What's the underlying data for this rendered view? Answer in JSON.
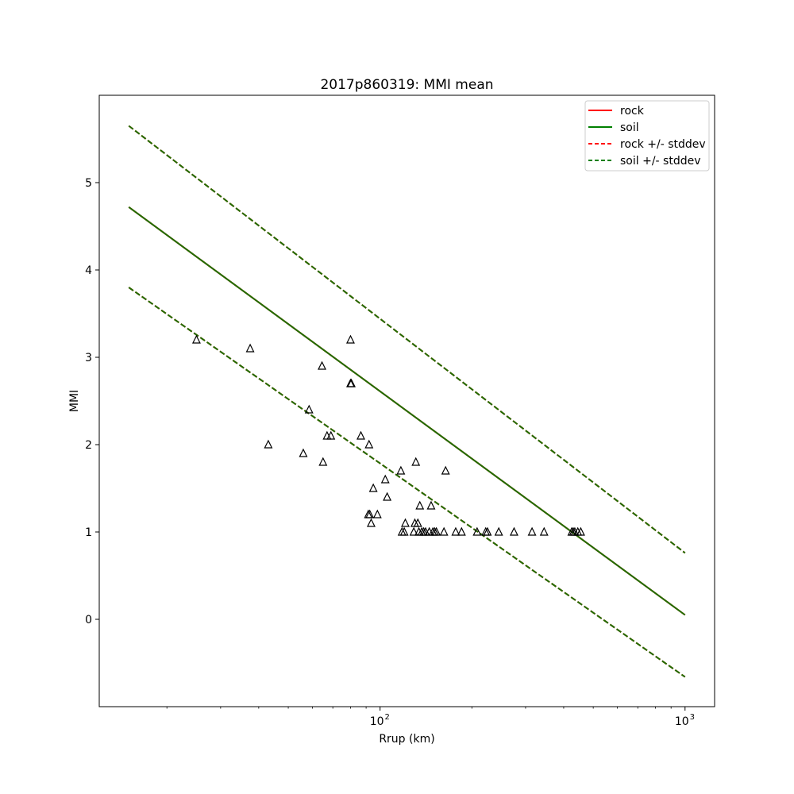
{
  "chart_data": {
    "type": "scatter",
    "title": "2017p860319: MMI mean",
    "xlabel": "Rrup (km)",
    "ylabel": "MMI",
    "xscale": "log",
    "xlim": [
      12.0,
      1250.0
    ],
    "ylim": [
      -1.0,
      6.0
    ],
    "xticks": [
      {
        "value": 100,
        "base": "10",
        "exp": "2"
      },
      {
        "value": 1000,
        "base": "10",
        "exp": "3"
      }
    ],
    "yticks": [
      0,
      1,
      2,
      3,
      4,
      5
    ],
    "grid": false,
    "legend": {
      "position": "top-right",
      "entries": [
        {
          "label": "rock",
          "color": "#ff0000",
          "dash": false
        },
        {
          "label": "soil",
          "color": "#008000",
          "dash": false
        },
        {
          "label": "rock +/- stddev",
          "color": "#ff0000",
          "dash": true
        },
        {
          "label": "soil +/- stddev",
          "color": "#008000",
          "dash": true
        }
      ]
    },
    "lines": [
      {
        "name": "rock",
        "color": "#ff0000",
        "dash": false,
        "x": [
          15,
          1000
        ],
        "y": [
          4.72,
          0.05
        ]
      },
      {
        "name": "rock +/- stddev",
        "color": "#ff0000",
        "dash": true,
        "x": [
          15,
          1000
        ],
        "y": [
          5.65,
          0.76
        ]
      },
      {
        "name": "rock +/- stddev",
        "color": "#ff0000",
        "dash": true,
        "x": [
          15,
          1000
        ],
        "y": [
          3.8,
          -0.66
        ]
      },
      {
        "name": "soil",
        "color": "#1f6e00",
        "dash": false,
        "x": [
          15,
          1000
        ],
        "y": [
          4.72,
          0.05
        ]
      },
      {
        "name": "soil +/- stddev",
        "color": "#1f6e00",
        "dash": true,
        "x": [
          15,
          1000
        ],
        "y": [
          5.65,
          0.76
        ]
      },
      {
        "name": "soil +/- stddev",
        "color": "#1f6e00",
        "dash": true,
        "x": [
          15,
          1000
        ],
        "y": [
          3.8,
          -0.66
        ]
      }
    ],
    "stations": {
      "marker": "triangle-open",
      "color": "#000000",
      "points": [
        [
          25,
          3.2
        ],
        [
          37.5,
          3.1
        ],
        [
          43,
          2.0
        ],
        [
          56,
          1.9
        ],
        [
          58.5,
          2.4
        ],
        [
          64.5,
          2.9
        ],
        [
          65,
          1.8
        ],
        [
          67,
          2.1
        ],
        [
          69,
          2.1
        ],
        [
          80,
          3.2
        ],
        [
          80,
          2.7
        ],
        [
          80.5,
          2.7
        ],
        [
          86.5,
          2.1
        ],
        [
          91.5,
          1.2
        ],
        [
          92.5,
          1.2
        ],
        [
          92,
          2.0
        ],
        [
          93.5,
          1.1
        ],
        [
          95,
          1.5
        ],
        [
          98,
          1.2
        ],
        [
          104,
          1.6
        ],
        [
          105.5,
          1.4
        ],
        [
          117,
          1.7
        ],
        [
          118,
          1.0
        ],
        [
          120,
          1.0
        ],
        [
          121,
          1.1
        ],
        [
          129,
          1.0
        ],
        [
          130,
          1.1
        ],
        [
          131,
          1.8
        ],
        [
          133,
          1.1
        ],
        [
          134,
          1.0
        ],
        [
          135,
          1.3
        ],
        [
          137,
          1.0
        ],
        [
          139,
          1.0
        ],
        [
          141,
          1.0
        ],
        [
          145,
          1.0
        ],
        [
          147,
          1.3
        ],
        [
          149,
          1.0
        ],
        [
          151,
          1.0
        ],
        [
          153,
          1.0
        ],
        [
          162,
          1.0
        ],
        [
          164,
          1.7
        ],
        [
          177,
          1.0
        ],
        [
          185,
          1.0
        ],
        [
          208,
          1.0
        ],
        [
          222,
          1.0
        ],
        [
          225,
          1.0
        ],
        [
          245,
          1.0
        ],
        [
          275,
          1.0
        ],
        [
          315,
          1.0
        ],
        [
          345,
          1.0
        ],
        [
          425,
          1.0
        ],
        [
          430,
          1.0
        ],
        [
          435,
          1.0
        ],
        [
          445,
          1.0
        ],
        [
          455,
          1.0
        ]
      ]
    }
  }
}
